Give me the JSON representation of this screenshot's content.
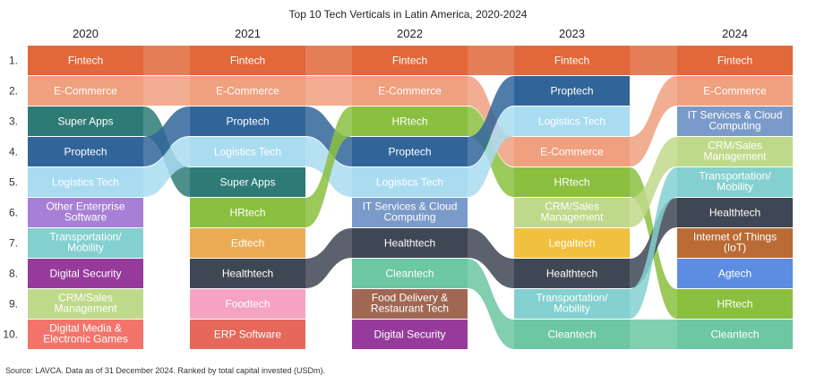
{
  "chart_data": {
    "type": "bump",
    "title": "Top 10 Tech Verticals in Latin America, 2020-2024",
    "years": [
      "2020",
      "2021",
      "2022",
      "2023",
      "2024"
    ],
    "ranks": [
      "1.",
      "2.",
      "3.",
      "4.",
      "5.",
      "6.",
      "7.",
      "8.",
      "9.",
      "10."
    ],
    "columns": [
      [
        "Fintech",
        "E-Commerce",
        "Super Apps",
        "Proptech",
        "Logistics Tech",
        "Other Enterprise\nSoftware",
        "Transportation/\nMobility",
        "Digital Security",
        "CRM/Sales\nManagement",
        "Digital Media &\nElectronic Games"
      ],
      [
        "Fintech",
        "E-Commerce",
        "Proptech",
        "Logistics Tech",
        "Super Apps",
        "HRtech",
        "Edtech",
        "Healthtech",
        "Foodtech",
        "ERP Software"
      ],
      [
        "Fintech",
        "E-Commerce",
        "HRtech",
        "Proptech",
        "Logistics Tech",
        "IT Services & Cloud\nComputing",
        "Healthtech",
        "Cleantech",
        "Food Delivery &\nRestaurant Tech",
        "Digital Security"
      ],
      [
        "Fintech",
        "Proptech",
        "Logistics Tech",
        "E-Commerce",
        "HRtech",
        "CRM/Sales\nManagement",
        "Legaltech",
        "Healthtech",
        "Transportation/\nMobility",
        "Cleantech"
      ],
      [
        "Fintech",
        "E-Commerce",
        "IT Services & Cloud\nComputing",
        "CRM/Sales\nManagement",
        "Transportation/\nMobility",
        "Healthtech",
        "Internet of Things\n(IoT)",
        "Agtech",
        "HRtech",
        "Cleantech"
      ]
    ],
    "colors": {
      "Fintech": "#E2673A",
      "E-Commerce": "#EFA07F",
      "Super Apps": "#2E7B76",
      "Proptech": "#31659A",
      "Logistics Tech": "#A9DCF1",
      "Other Enterprise\nSoftware": "#A77FD6",
      "Transportation/\nMobility": "#84D0D0",
      "Digital Security": "#963B9C",
      "CRM/Sales\nManagement": "#BFD98A",
      "Digital Media &\nElectronic Games": "#F2746B",
      "HRtech": "#8BBF3F",
      "Edtech": "#E9AC55",
      "Healthtech": "#3E4753",
      "Foodtech": "#F4A3C3",
      "ERP Software": "#E5685A",
      "IT Services & Cloud\nComputing": "#7A9AC9",
      "Cleantech": "#6CC7A2",
      "Food Delivery &\nRestaurant Tech": "#A06753",
      "Legaltech": "#F0C03E",
      "Internet of Things\n(IoT)": "#BA6B35",
      "Agtech": "#5D8CE3"
    }
  },
  "source_note": "Source: LAVCA. Data as of 31 December 2024. Ranked by total capital invested (USDm)."
}
